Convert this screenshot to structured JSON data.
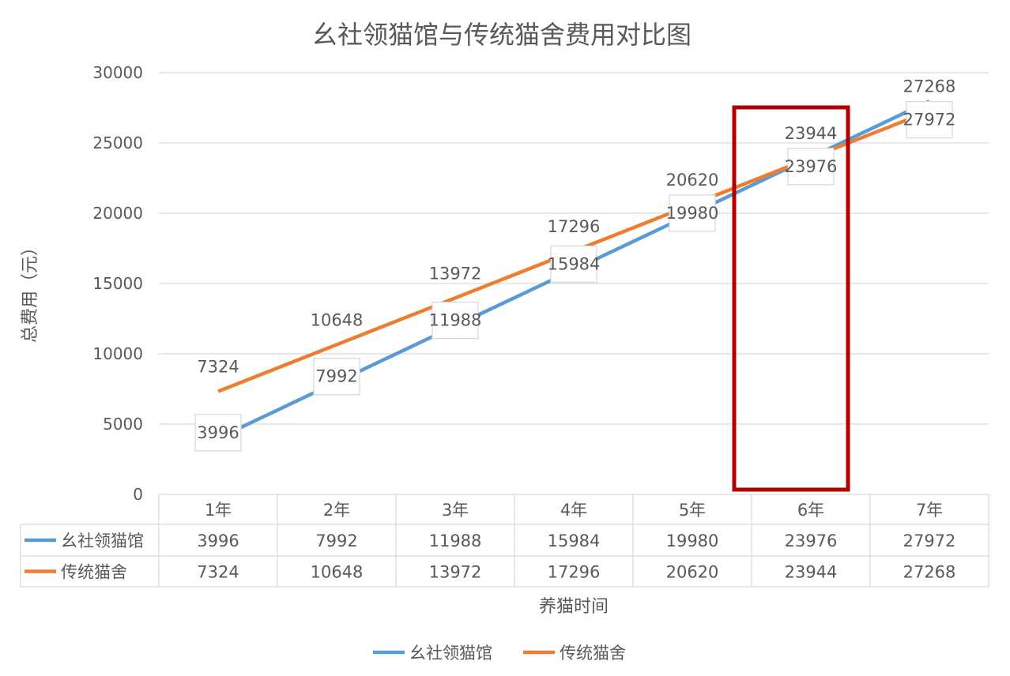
{
  "chart_data": {
    "type": "line",
    "title": "幺社领猫馆与传统猫舍费用对比图",
    "xlabel": "养猫时间",
    "ylabel": "总费用（元）",
    "categories": [
      "1年",
      "2年",
      "3年",
      "4年",
      "5年",
      "6年",
      "7年"
    ],
    "ylim": [
      0,
      30000
    ],
    "yticks": [
      0,
      5000,
      10000,
      15000,
      20000,
      25000,
      30000
    ],
    "grid": true,
    "legend_position": "bottom",
    "data_table": true,
    "highlight_category": "6年",
    "highlight_color": "#b00000",
    "series": [
      {
        "name": "幺社领猫馆",
        "color": "#5b9bd5",
        "values": [
          3996,
          7992,
          11988,
          15984,
          19980,
          23976,
          27972
        ]
      },
      {
        "name": "传统猫舍",
        "color": "#ed7d31",
        "values": [
          7324,
          10648,
          13972,
          17296,
          20620,
          23944,
          27268
        ]
      }
    ]
  }
}
